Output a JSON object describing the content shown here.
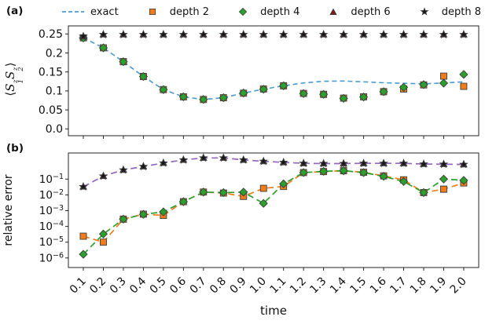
{
  "figure": {
    "panel_a_label": "(a)",
    "panel_b_label": "(b)",
    "xlabel": "time",
    "ylabel_b": "relative error",
    "ylabel_a_parts": {
      "open": "⟨",
      "s1": "S",
      "sub1": "1",
      "sup1": "z",
      "s2": "S",
      "sub2": "2",
      "sup2": "z",
      "close": "⟩"
    }
  },
  "colors": {
    "exact_line": "#4a9ad4",
    "depth2": "#f07d1a",
    "depth4": "#2ca02c",
    "depth6_marker": "#7e1b1b",
    "depth6_line_b": "#9467bd",
    "depth8": "#151515",
    "marker_edge": "#3c3c3c",
    "axis": "#262626"
  },
  "legend": {
    "items": [
      {
        "label": "exact",
        "marker": "dashes",
        "color": "#4a9ad4"
      },
      {
        "label": "depth 2",
        "marker": "square",
        "color": "#f07d1a"
      },
      {
        "label": "depth 4",
        "marker": "diamond",
        "color": "#2ca02c"
      },
      {
        "label": "depth 6",
        "marker": "triangle",
        "color": "#7e1b1b"
      },
      {
        "label": "depth 8",
        "marker": "star",
        "color": "#151515"
      }
    ]
  },
  "chart_data": [
    {
      "panel": "a",
      "type": "line",
      "yscale": "linear",
      "ylabel": "<S1z S2z>",
      "ylim": [
        -0.019,
        0.271
      ],
      "yticks": [
        0.0,
        0.05,
        0.1,
        0.15,
        0.2,
        0.25
      ],
      "ytick_labels": [
        "0.0",
        "0.05",
        "0.1",
        "0.15",
        "0.2",
        "0.25"
      ],
      "x": [
        0.1,
        0.2,
        0.3,
        0.4,
        0.5,
        0.6,
        0.7,
        0.8,
        0.9,
        1.0,
        1.1,
        1.2,
        1.3,
        1.4,
        1.5,
        1.6,
        1.7,
        1.8,
        1.9,
        2.0
      ],
      "series": [
        {
          "name": "exact",
          "draw": "line",
          "color": "#4a9ad4",
          "values": [
            0.24,
            0.2135,
            0.177,
            0.138,
            0.1035,
            0.0845,
            0.0775,
            0.082,
            0.0945,
            0.1045,
            0.1135,
            0.121,
            0.1255,
            0.126,
            0.124,
            0.1215,
            0.12,
            0.1185,
            0.121,
            0.124
          ]
        },
        {
          "name": "depth 2",
          "draw": "markers",
          "marker": "square",
          "color": "#f07d1a",
          "values": [
            0.24,
            0.2135,
            0.177,
            0.138,
            0.1035,
            0.0845,
            0.0775,
            0.082,
            0.094,
            0.105,
            0.1135,
            0.0935,
            0.091,
            0.081,
            0.0845,
            0.098,
            0.105,
            0.116,
            0.139,
            0.112
          ]
        },
        {
          "name": "depth 4",
          "draw": "markers",
          "marker": "diamond",
          "color": "#2ca02c",
          "values": [
            0.2395,
            0.2135,
            0.177,
            0.138,
            0.1035,
            0.0845,
            0.0775,
            0.082,
            0.0945,
            0.1045,
            0.1135,
            0.093,
            0.091,
            0.0805,
            0.084,
            0.098,
            0.1095,
            0.1165,
            0.1205,
            0.1435
          ]
        },
        {
          "name": "depth 6",
          "draw": "markers",
          "marker": "triangle",
          "color": "#7e1b1b",
          "values": [
            0.2435,
            0.2485,
            0.2485,
            0.2485,
            0.2485,
            0.2485,
            0.2485,
            0.2485,
            0.2485,
            0.2485,
            0.2485,
            0.2485,
            0.2485,
            0.2485,
            0.2485,
            0.2485,
            0.2485,
            0.2485,
            0.2485,
            0.2485
          ]
        },
        {
          "name": "depth 8",
          "draw": "markers",
          "marker": "star",
          "color": "#151515",
          "values": [
            0.2435,
            0.2485,
            0.2485,
            0.2485,
            0.2485,
            0.2485,
            0.2485,
            0.2485,
            0.2485,
            0.2485,
            0.2485,
            0.2485,
            0.2485,
            0.2485,
            0.2485,
            0.2485,
            0.2485,
            0.2485,
            0.2485,
            0.2485
          ]
        }
      ]
    },
    {
      "panel": "b",
      "type": "line",
      "yscale": "log",
      "ylabel": "relative error",
      "xlabel": "time",
      "ylim": [
        3e-07,
        4.5
      ],
      "yticks": [
        0.1,
        0.01,
        0.001,
        0.0001,
        1e-05,
        1e-06
      ],
      "ytick_exponents": [
        "−1",
        "−2",
        "−3",
        "−4",
        "−5",
        "−6"
      ],
      "x": [
        0.1,
        0.2,
        0.3,
        0.4,
        0.5,
        0.6,
        0.7,
        0.8,
        0.9,
        1.0,
        1.1,
        1.2,
        1.3,
        1.4,
        1.5,
        1.6,
        1.7,
        1.8,
        1.9,
        2.0
      ],
      "xtick_labels": [
        "0.1",
        "0.2",
        "0.3",
        "0.4",
        "0.5",
        "0.6",
        "0.7",
        "0.8",
        "0.9",
        "1.0",
        "1.1",
        "1.2",
        "1.3",
        "1.4",
        "1.5",
        "1.6",
        "1.7",
        "1.8",
        "1.9",
        "2.0"
      ],
      "series": [
        {
          "name": "depth 2",
          "draw": "line+markers",
          "marker": "square",
          "color": "#f07d1a",
          "values": [
            2.4e-05,
            1e-05,
            0.00029,
            0.0006,
            0.0005,
            0.0037,
            0.015,
            0.013,
            0.008,
            0.026,
            0.034,
            0.26,
            0.3,
            0.34,
            0.27,
            0.16,
            0.09,
            0.014,
            0.023,
            0.057
          ]
        },
        {
          "name": "depth 4",
          "draw": "line+markers",
          "marker": "diamond",
          "color": "#2ca02c",
          "values": [
            1.7e-06,
            3.3e-05,
            0.00029,
            0.00058,
            0.00084,
            0.0037,
            0.015,
            0.014,
            0.015,
            0.0029,
            0.05,
            0.26,
            0.31,
            0.34,
            0.26,
            0.15,
            0.07,
            0.014,
            0.1,
            0.083
          ]
        },
        {
          "name": "depth 6",
          "draw": "line+markers",
          "marker": "triangle",
          "color": "#7e1b1b",
          "line_color": "#9467bd",
          "values": [
            0.033,
            0.155,
            0.38,
            0.63,
            1.05,
            1.65,
            2.2,
            2.2,
            1.65,
            1.35,
            1.15,
            1.0,
            0.97,
            0.97,
            1.0,
            1.0,
            1.0,
            0.9,
            0.88,
            0.85
          ]
        },
        {
          "name": "depth 8",
          "draw": "markers",
          "marker": "star",
          "color": "#151515",
          "values": [
            0.033,
            0.155,
            0.38,
            0.63,
            1.05,
            1.65,
            2.2,
            2.2,
            1.65,
            1.35,
            1.15,
            1.0,
            0.97,
            0.97,
            1.0,
            1.0,
            1.0,
            0.9,
            0.88,
            0.85
          ]
        }
      ]
    }
  ]
}
